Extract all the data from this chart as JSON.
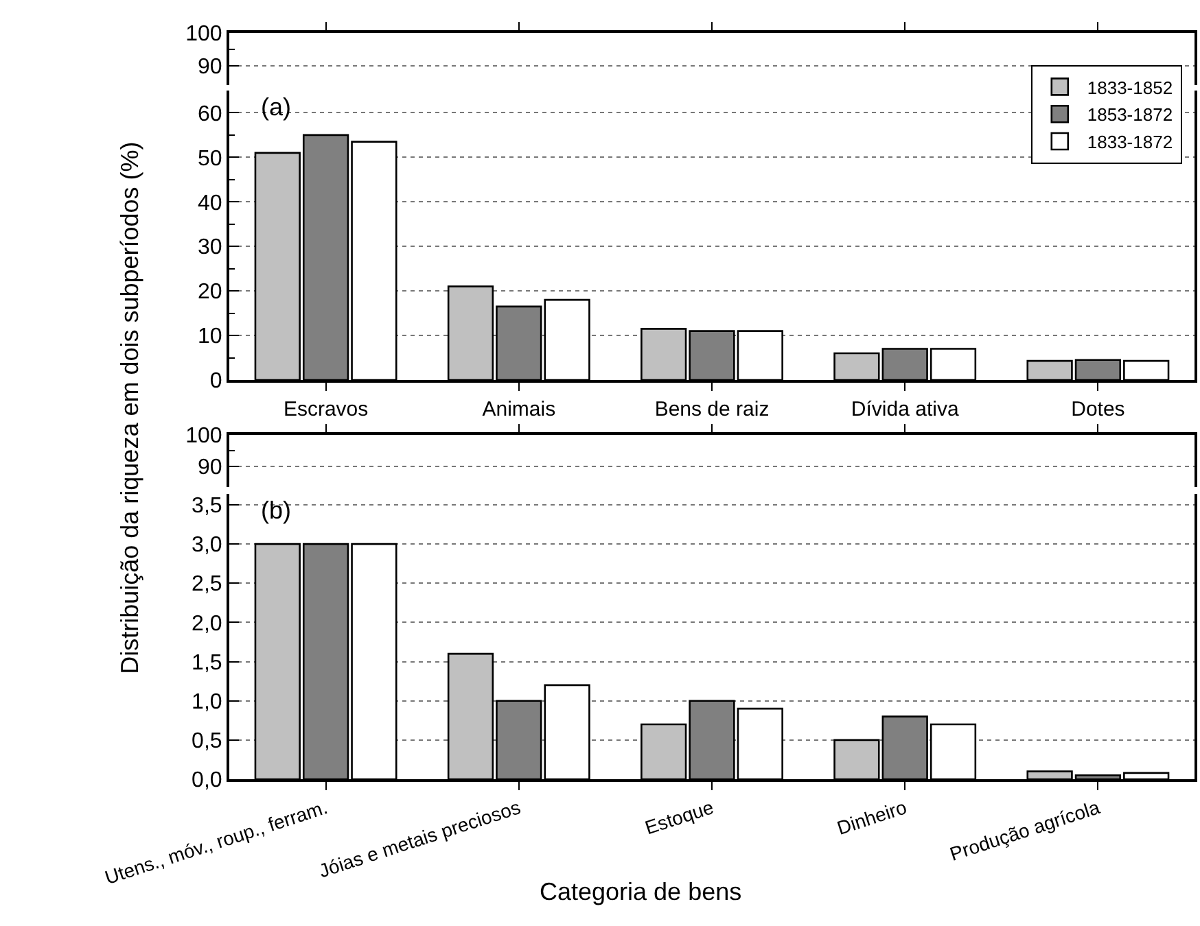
{
  "chart_data": [
    {
      "type": "bar",
      "categories": [
        null,
        null,
        null,
        null,
        null
      ],
      "values": [
        null,
        null,
        null,
        null,
        null
      ],
      "ylim": [
        84,
        100
      ],
      "yticks": [
        90,
        {
          "value": 95,
          "label": null
        },
        100
      ],
      "grid": "y",
      "tick_labels": "y"
    },
    {
      "type": "bar",
      "ylabel": "Distribuição da riqueza em dois subperíodos (%)",
      "annotations": [
        "(a)"
      ],
      "categories": [
        "Escravos",
        "Animais",
        "Bens de raiz",
        "Dívida ativa",
        "Dotes"
      ],
      "series": [
        {
          "name": "1833-1852",
          "color": "#c0c0c0",
          "values": [
            51,
            21,
            11.5,
            6,
            4.3
          ]
        },
        {
          "name": "1853-1872",
          "color": "#808080",
          "values": [
            55,
            16.5,
            11,
            7,
            4.5
          ]
        },
        {
          "name": "1833-1872",
          "color": "#ffffff",
          "values": [
            53.5,
            18,
            11,
            7,
            4.3
          ]
        }
      ],
      "ylim": [
        0,
        65
      ],
      "yticks": [
        0,
        {
          "value": 5,
          "label": null
        },
        10,
        {
          "value": 15,
          "label": null
        },
        20,
        {
          "value": 25,
          "label": null
        },
        30,
        {
          "value": 35,
          "label": null
        },
        40,
        {
          "value": 45,
          "label": null
        },
        50,
        {
          "value": 55,
          "label": null
        },
        60
      ],
      "grid": "y",
      "legend": "top right"
    },
    {
      "type": "bar",
      "categories": [
        null,
        null,
        null,
        null,
        null
      ],
      "values": [
        null,
        null,
        null,
        null,
        null
      ],
      "ylim": [
        83.5,
        100
      ],
      "yticks": [
        90,
        {
          "value": 95,
          "label": null
        },
        100
      ],
      "grid": "y",
      "tick_labels": "y"
    },
    {
      "type": "bar",
      "xlabel": "Categoria de bens",
      "annotations": [
        "(b)"
      ],
      "categories": [
        "Utens., móv., roup., ferram.",
        "Jóias e metais preciosos",
        "Estoque",
        "Dinheiro",
        "Produção agrícola"
      ],
      "series": [
        {
          "color": "#c0c0c0",
          "values": [
            3.0,
            1.6,
            0.7,
            0.5,
            0.1
          ]
        },
        {
          "color": "#808080",
          "values": [
            3.0,
            1.0,
            1.0,
            0.8,
            0.05
          ]
        },
        {
          "color": "#ffffff",
          "values": [
            3.0,
            1.2,
            0.9,
            0.7,
            0.08
          ]
        }
      ],
      "ylim": [
        0,
        3.64
      ],
      "yticks": [
        {
          "value": 0,
          "label": "0,0"
        },
        {
          "value": 0.5,
          "label": "0,5"
        },
        {
          "value": 1.0,
          "label": "1,0"
        },
        {
          "value": 1.5,
          "label": "1,5"
        },
        {
          "value": 2.0,
          "label": "2,0"
        },
        {
          "value": 2.5,
          "label": "2,5"
        },
        {
          "value": 3.0,
          "label": "3,0"
        },
        {
          "value": 3.5,
          "label": "3,5"
        }
      ],
      "grid": "y"
    }
  ]
}
